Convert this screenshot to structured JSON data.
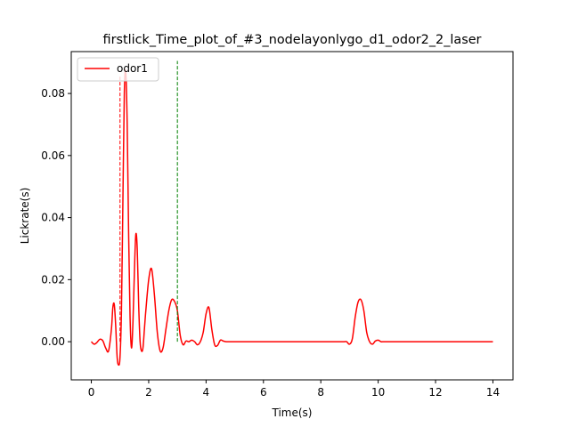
{
  "chart_data": {
    "type": "line",
    "title": "firstlick_Time_plot_of_#3_nodelayonlygo_d1_odor2_2_laser",
    "xlabel": "Time(s)",
    "ylabel": "Lickrate(s)",
    "xlim": [
      -0.7,
      14.7
    ],
    "ylim": [
      -0.0123,
      0.0935
    ],
    "xticks": [
      0,
      2,
      4,
      6,
      8,
      10,
      12,
      14
    ],
    "yticks": [
      0.0,
      0.02,
      0.04,
      0.06,
      0.08
    ],
    "ytick_labels": [
      "0.00",
      "0.02",
      "0.04",
      "0.06",
      "0.08"
    ],
    "grid": false,
    "legend_position": "upper-left",
    "series": [
      {
        "name": "odor1",
        "color": "#ff0000",
        "x": [
          0,
          0.1,
          0.2,
          0.3,
          0.4,
          0.5,
          0.6,
          0.7,
          0.75,
          0.8,
          0.85,
          0.9,
          0.95,
          1.0,
          1.05,
          1.1,
          1.15,
          1.2,
          1.25,
          1.3,
          1.35,
          1.4,
          1.45,
          1.5,
          1.55,
          1.6,
          1.65,
          1.7,
          1.75,
          1.8,
          1.85,
          1.9,
          2.0,
          2.1,
          2.2,
          2.3,
          2.4,
          2.5,
          2.6,
          2.7,
          2.8,
          2.9,
          3.0,
          3.1,
          3.2,
          3.3,
          3.4,
          3.5,
          3.6,
          3.7,
          3.8,
          3.9,
          4.0,
          4.1,
          4.2,
          4.3,
          4.4,
          4.5,
          4.6,
          4.7,
          4.8,
          4.9,
          5.0,
          6.0,
          7.0,
          8.0,
          8.6,
          8.8,
          8.9,
          9.0,
          9.1,
          9.2,
          9.3,
          9.4,
          9.5,
          9.6,
          9.7,
          9.8,
          9.9,
          10.0,
          10.1,
          10.2,
          10.4,
          11.0,
          12.0,
          13.0,
          14.0
        ],
        "y": [
          0.0,
          -0.0008,
          -0.0002,
          0.0008,
          0.0003,
          -0.002,
          -0.003,
          0.004,
          0.011,
          0.012,
          0.005,
          -0.005,
          -0.0075,
          -0.005,
          0.01,
          0.045,
          0.08,
          0.087,
          0.07,
          0.035,
          0.008,
          -0.002,
          0.006,
          0.022,
          0.0345,
          0.03,
          0.012,
          0.0,
          -0.003,
          -0.002,
          0.004,
          0.01,
          0.02,
          0.0235,
          0.015,
          0.003,
          -0.003,
          -0.002,
          0.004,
          0.01,
          0.0135,
          0.013,
          0.01,
          0.002,
          -0.001,
          0.0002,
          0.0,
          0.0005,
          0.0,
          -0.001,
          0.0,
          0.003,
          0.009,
          0.011,
          0.004,
          -0.001,
          -0.0012,
          0.0005,
          0.0002,
          0.0,
          0.0,
          0.0,
          0.0,
          0.0,
          0.0,
          0.0,
          0.0,
          0.0,
          0.0,
          -0.0008,
          0.001,
          0.008,
          0.0128,
          0.0135,
          0.01,
          0.003,
          0.0,
          -0.0008,
          0.0002,
          0.0005,
          0.0,
          0.0,
          0.0,
          0.0,
          0.0,
          0.0,
          0.0
        ]
      }
    ],
    "vlines": [
      {
        "x": 1.0,
        "y0": 0.0,
        "y1": 0.0855,
        "color": "#ff0000",
        "style": "dashed"
      },
      {
        "x": 3.0,
        "y0": 0.0,
        "y1": 0.0905,
        "color": "#008000",
        "style": "dashed"
      }
    ]
  }
}
